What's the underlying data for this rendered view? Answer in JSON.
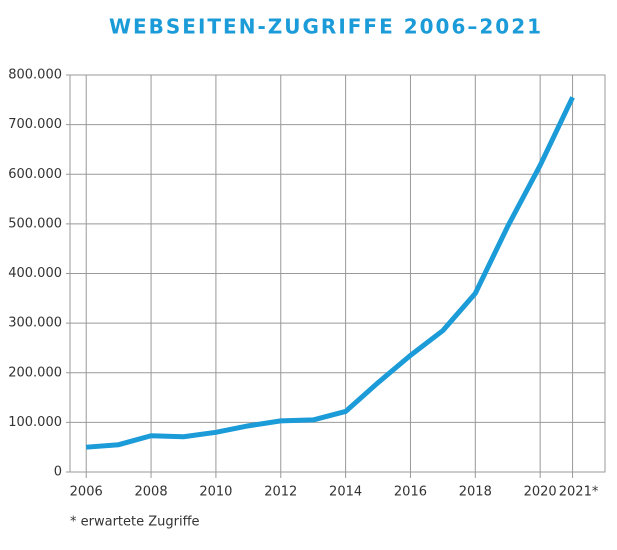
{
  "chart_data": {
    "type": "line",
    "title": "WEBSEITEN-ZUGRIFFE 2006–2021",
    "footnote": "* erwartete Zugriffe",
    "x": [
      2006,
      2007,
      2008,
      2009,
      2010,
      2011,
      2012,
      2013,
      2014,
      2015,
      2016,
      2017,
      2018,
      2019,
      2020,
      2021
    ],
    "series": [
      {
        "name": "Webseiten-Zugriffe",
        "color": "#1b9bd7",
        "values": [
          50000,
          55000,
          73000,
          71000,
          80000,
          93000,
          103000,
          105000,
          122000,
          180000,
          235000,
          285000,
          360000,
          495000,
          618000,
          755000
        ]
      }
    ],
    "xlim": [
      2005.5,
      2022
    ],
    "xticks": [
      2006,
      2008,
      2010,
      2012,
      2014,
      2016,
      2018,
      2020,
      {
        "value": 2021,
        "label": "2021*"
      }
    ],
    "ylim": [
      0,
      800000
    ],
    "yticks": [
      0,
      {
        "value": 100000,
        "label": "100.000"
      },
      {
        "value": 200000,
        "label": "200.000"
      },
      {
        "value": 300000,
        "label": "300.000"
      },
      {
        "value": 400000,
        "label": "400.000"
      },
      {
        "value": 500000,
        "label": "500.000"
      },
      {
        "value": 600000,
        "label": "600.000"
      },
      {
        "value": 700000,
        "label": "700.000"
      },
      {
        "value": 800000,
        "label": "800.000"
      }
    ],
    "grid": true
  }
}
